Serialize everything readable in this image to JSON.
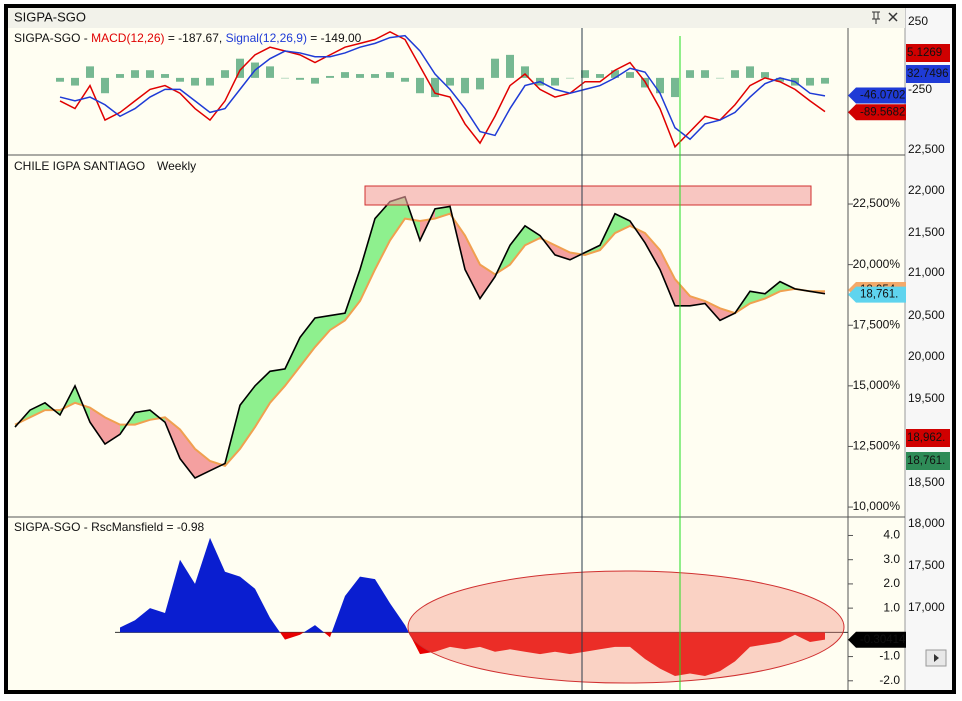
{
  "window": {
    "title": "SIGPA-SGO"
  },
  "background_window": {
    "axis_labels": [
      "250",
      "-250",
      "22,500",
      "22,000",
      "21,500",
      "21,000",
      "20,500",
      "20,000",
      "19,500",
      "19,000",
      "18,500",
      "18,000",
      "17,500",
      "17,000"
    ],
    "tags": [
      {
        "label": "5.1269",
        "color": "#d00000"
      },
      {
        "label": "32.7496",
        "color": "#1f3bd6"
      },
      {
        "label": "18,962.",
        "color": "#d00000"
      },
      {
        "label": "18,761.",
        "color": "#2e8b57"
      }
    ]
  },
  "chart_data": [
    {
      "type": "line",
      "title": "SIGPA-SGO -",
      "ylim": [
        -201,
        130
      ],
      "series": [
        {
          "name": "MACD(12,26)",
          "readout": "= -187.67,",
          "color": "#e00000",
          "values": [
            null,
            null,
            null,
            -60,
            -80,
            -20,
            -110,
            -90,
            -60,
            -30,
            -20,
            -40,
            -80,
            -110,
            -60,
            20,
            60,
            80,
            70,
            60,
            40,
            60,
            80,
            90,
            100,
            120,
            100,
            30,
            -40,
            -50,
            -120,
            -170,
            -100,
            -20,
            10,
            -30,
            -50,
            -40,
            -10,
            -10,
            20,
            40,
            -10,
            -80,
            -180,
            -140,
            -100,
            -110,
            -70,
            -20,
            0,
            -10,
            -30,
            -60,
            -88
          ]
        },
        {
          "name": "Signal(12,26,9)",
          "readout": "= -149.00",
          "color": "#1f3bd6",
          "values": [
            null,
            null,
            null,
            -50,
            -60,
            -50,
            -70,
            -100,
            -80,
            -50,
            -30,
            -30,
            -60,
            -90,
            -80,
            -30,
            20,
            50,
            70,
            65,
            55,
            55,
            65,
            80,
            90,
            105,
            110,
            70,
            10,
            -30,
            -80,
            -140,
            -150,
            -80,
            -20,
            -10,
            -30,
            -40,
            -30,
            -20,
            0,
            25,
            15,
            -40,
            -130,
            -160,
            -120,
            -110,
            -90,
            -50,
            -15,
            0,
            -10,
            -40,
            -47
          ]
        },
        {
          "type": "bar",
          "color": "#3c9a6a",
          "values": [
            null,
            null,
            null,
            -10,
            -20,
            30,
            -40,
            10,
            20,
            20,
            10,
            -10,
            -20,
            -20,
            20,
            50,
            40,
            30,
            0,
            -5,
            -15,
            5,
            15,
            10,
            10,
            15,
            -10,
            -40,
            -50,
            -20,
            -40,
            -30,
            50,
            60,
            30,
            -20,
            -20,
            0,
            20,
            10,
            20,
            15,
            -25,
            -40,
            -50,
            20,
            20,
            0,
            20,
            30,
            15,
            -10,
            -20,
            -20,
            -15
          ]
        }
      ],
      "tags": [
        {
          "value": -46.0702,
          "label": "-46.0702",
          "color": "#1f3bd6"
        },
        {
          "value": -89.5682,
          "label": "-89.5682",
          "color": "#d00000"
        }
      ]
    },
    {
      "type": "line",
      "title": "CHILE IGPA SANTIAGO",
      "subtitle": "Weekly",
      "ylim": [
        9590,
        24440
      ],
      "yticks": [
        {
          "value": 10000,
          "label": "10,000%"
        },
        {
          "value": 12500,
          "label": "12,500%"
        },
        {
          "value": 15000,
          "label": "15,000%"
        },
        {
          "value": 17500,
          "label": "17,500%"
        },
        {
          "value": 20000,
          "label": "20,000%"
        },
        {
          "value": 22500,
          "label": "22,500%"
        }
      ],
      "series": [
        {
          "color": "#000000",
          "values": [
            13300,
            14000,
            14300,
            13800,
            15000,
            13500,
            12600,
            13000,
            13900,
            14000,
            13500,
            12000,
            11200,
            11500,
            11800,
            14200,
            15000,
            15600,
            15700,
            17000,
            17800,
            17900,
            18000,
            19800,
            21900,
            22600,
            22800,
            21000,
            22300,
            22400,
            19800,
            18600,
            19500,
            20800,
            21600,
            21200,
            20400,
            20200,
            20500,
            20800,
            22100,
            21800,
            20900,
            19800,
            18300,
            18300,
            18400,
            17700,
            18000,
            18900,
            18800,
            19300,
            19000,
            18900,
            18800
          ]
        },
        {
          "color": "#f0a050",
          "values": [
            13400,
            13700,
            14000,
            14000,
            14300,
            14100,
            13700,
            13400,
            13400,
            13600,
            13700,
            13200,
            12400,
            11900,
            11700,
            12400,
            13300,
            14300,
            15000,
            15800,
            16600,
            17300,
            17700,
            18500,
            19800,
            21000,
            21900,
            21800,
            21900,
            22100,
            21200,
            20000,
            19600,
            20000,
            20800,
            21100,
            20800,
            20500,
            20400,
            20600,
            21300,
            21600,
            21300,
            20600,
            19400,
            18700,
            18500,
            18200,
            18000,
            18400,
            18600,
            18900,
            19000,
            18900,
            18900
          ]
        }
      ],
      "fill_colors": {
        "up": "#8ef08e",
        "down": "#f4a0a0"
      },
      "tags": [
        {
          "value": 18954,
          "label": "18,954.",
          "color": "#f4a96a"
        },
        {
          "value": 18761,
          "label": "18,761.",
          "color": "#5fd4ee"
        }
      ]
    },
    {
      "type": "area",
      "title": "SIGPA-SGO - RscMansfield = -0.98",
      "ylim": [
        -2.38,
        4.68
      ],
      "yticks": [
        {
          "value": -2,
          "label": "-2.0"
        },
        {
          "value": -1,
          "label": "-1.0"
        },
        {
          "value": 1,
          "label": "1.0"
        },
        {
          "value": 2,
          "label": "2.0"
        },
        {
          "value": 3,
          "label": "3.0"
        },
        {
          "value": 4,
          "label": "4.0"
        }
      ],
      "colors": {
        "positive": "#0a1ed0",
        "negative": "#e80000"
      },
      "values": [
        null,
        null,
        null,
        null,
        null,
        null,
        null,
        0.2,
        0.5,
        1.0,
        0.8,
        3.0,
        2.0,
        3.9,
        2.5,
        2.3,
        1.8,
        0.6,
        -0.3,
        -0.1,
        0.3,
        -0.2,
        1.5,
        2.3,
        2.2,
        1.2,
        0.3,
        -0.9,
        -0.8,
        -0.6,
        -0.7,
        -0.6,
        -0.8,
        -0.7,
        -0.8,
        -0.9,
        -0.8,
        -0.9,
        -0.8,
        -0.7,
        -0.6,
        -0.6,
        -1.1,
        -1.5,
        -1.8,
        -1.7,
        -1.8,
        -1.6,
        -1.2,
        -0.6,
        -0.5,
        -0.4,
        -0.1,
        -0.4,
        -0.3
      ],
      "tags": [
        {
          "value": -0.30414,
          "label": "-0.30414",
          "color": "#000000"
        }
      ]
    }
  ]
}
